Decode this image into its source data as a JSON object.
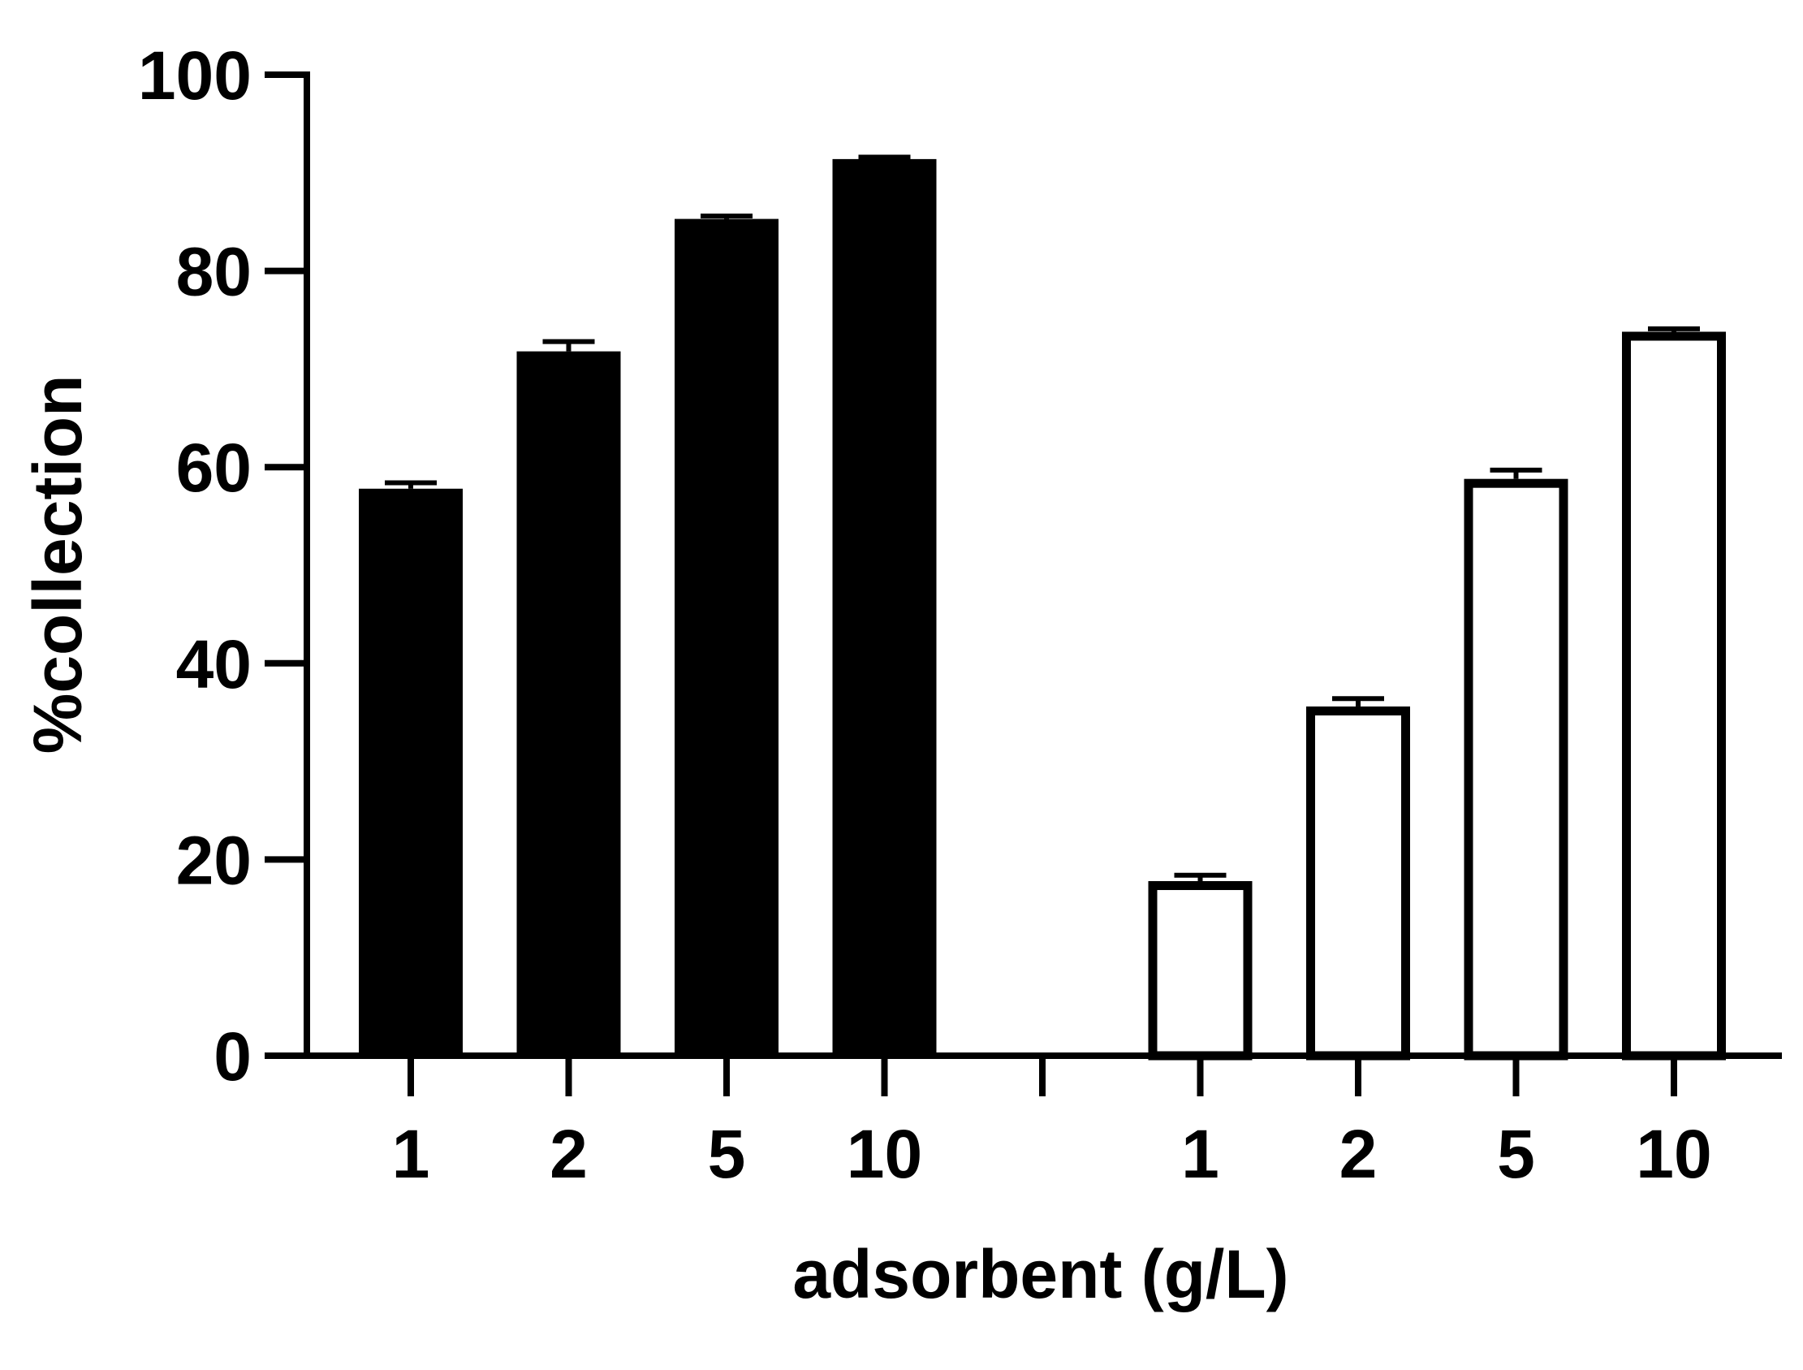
{
  "chart_data": {
    "type": "bar",
    "title": "",
    "xlabel": "adsorbent (g/L)",
    "ylabel": "%collection",
    "ylim": [
      0,
      100
    ],
    "yticks": [
      0,
      20,
      40,
      60,
      80,
      100
    ],
    "grid": false,
    "legend": "none",
    "groups": [
      {
        "style": "filled",
        "categories": [
          "1",
          "2",
          "5",
          "10"
        ],
        "values": [
          57.8,
          71.8,
          85.3,
          91.4
        ],
        "errors": [
          0.6,
          1.0,
          0.3,
          0.2
        ]
      },
      {
        "style": "outline",
        "categories": [
          "1",
          "2",
          "5",
          "10"
        ],
        "values": [
          17.8,
          35.6,
          58.8,
          73.8
        ],
        "errors": [
          0.6,
          0.8,
          0.9,
          0.3
        ]
      }
    ],
    "colors": {
      "bar": "#000000",
      "background": "#ffffff"
    }
  }
}
